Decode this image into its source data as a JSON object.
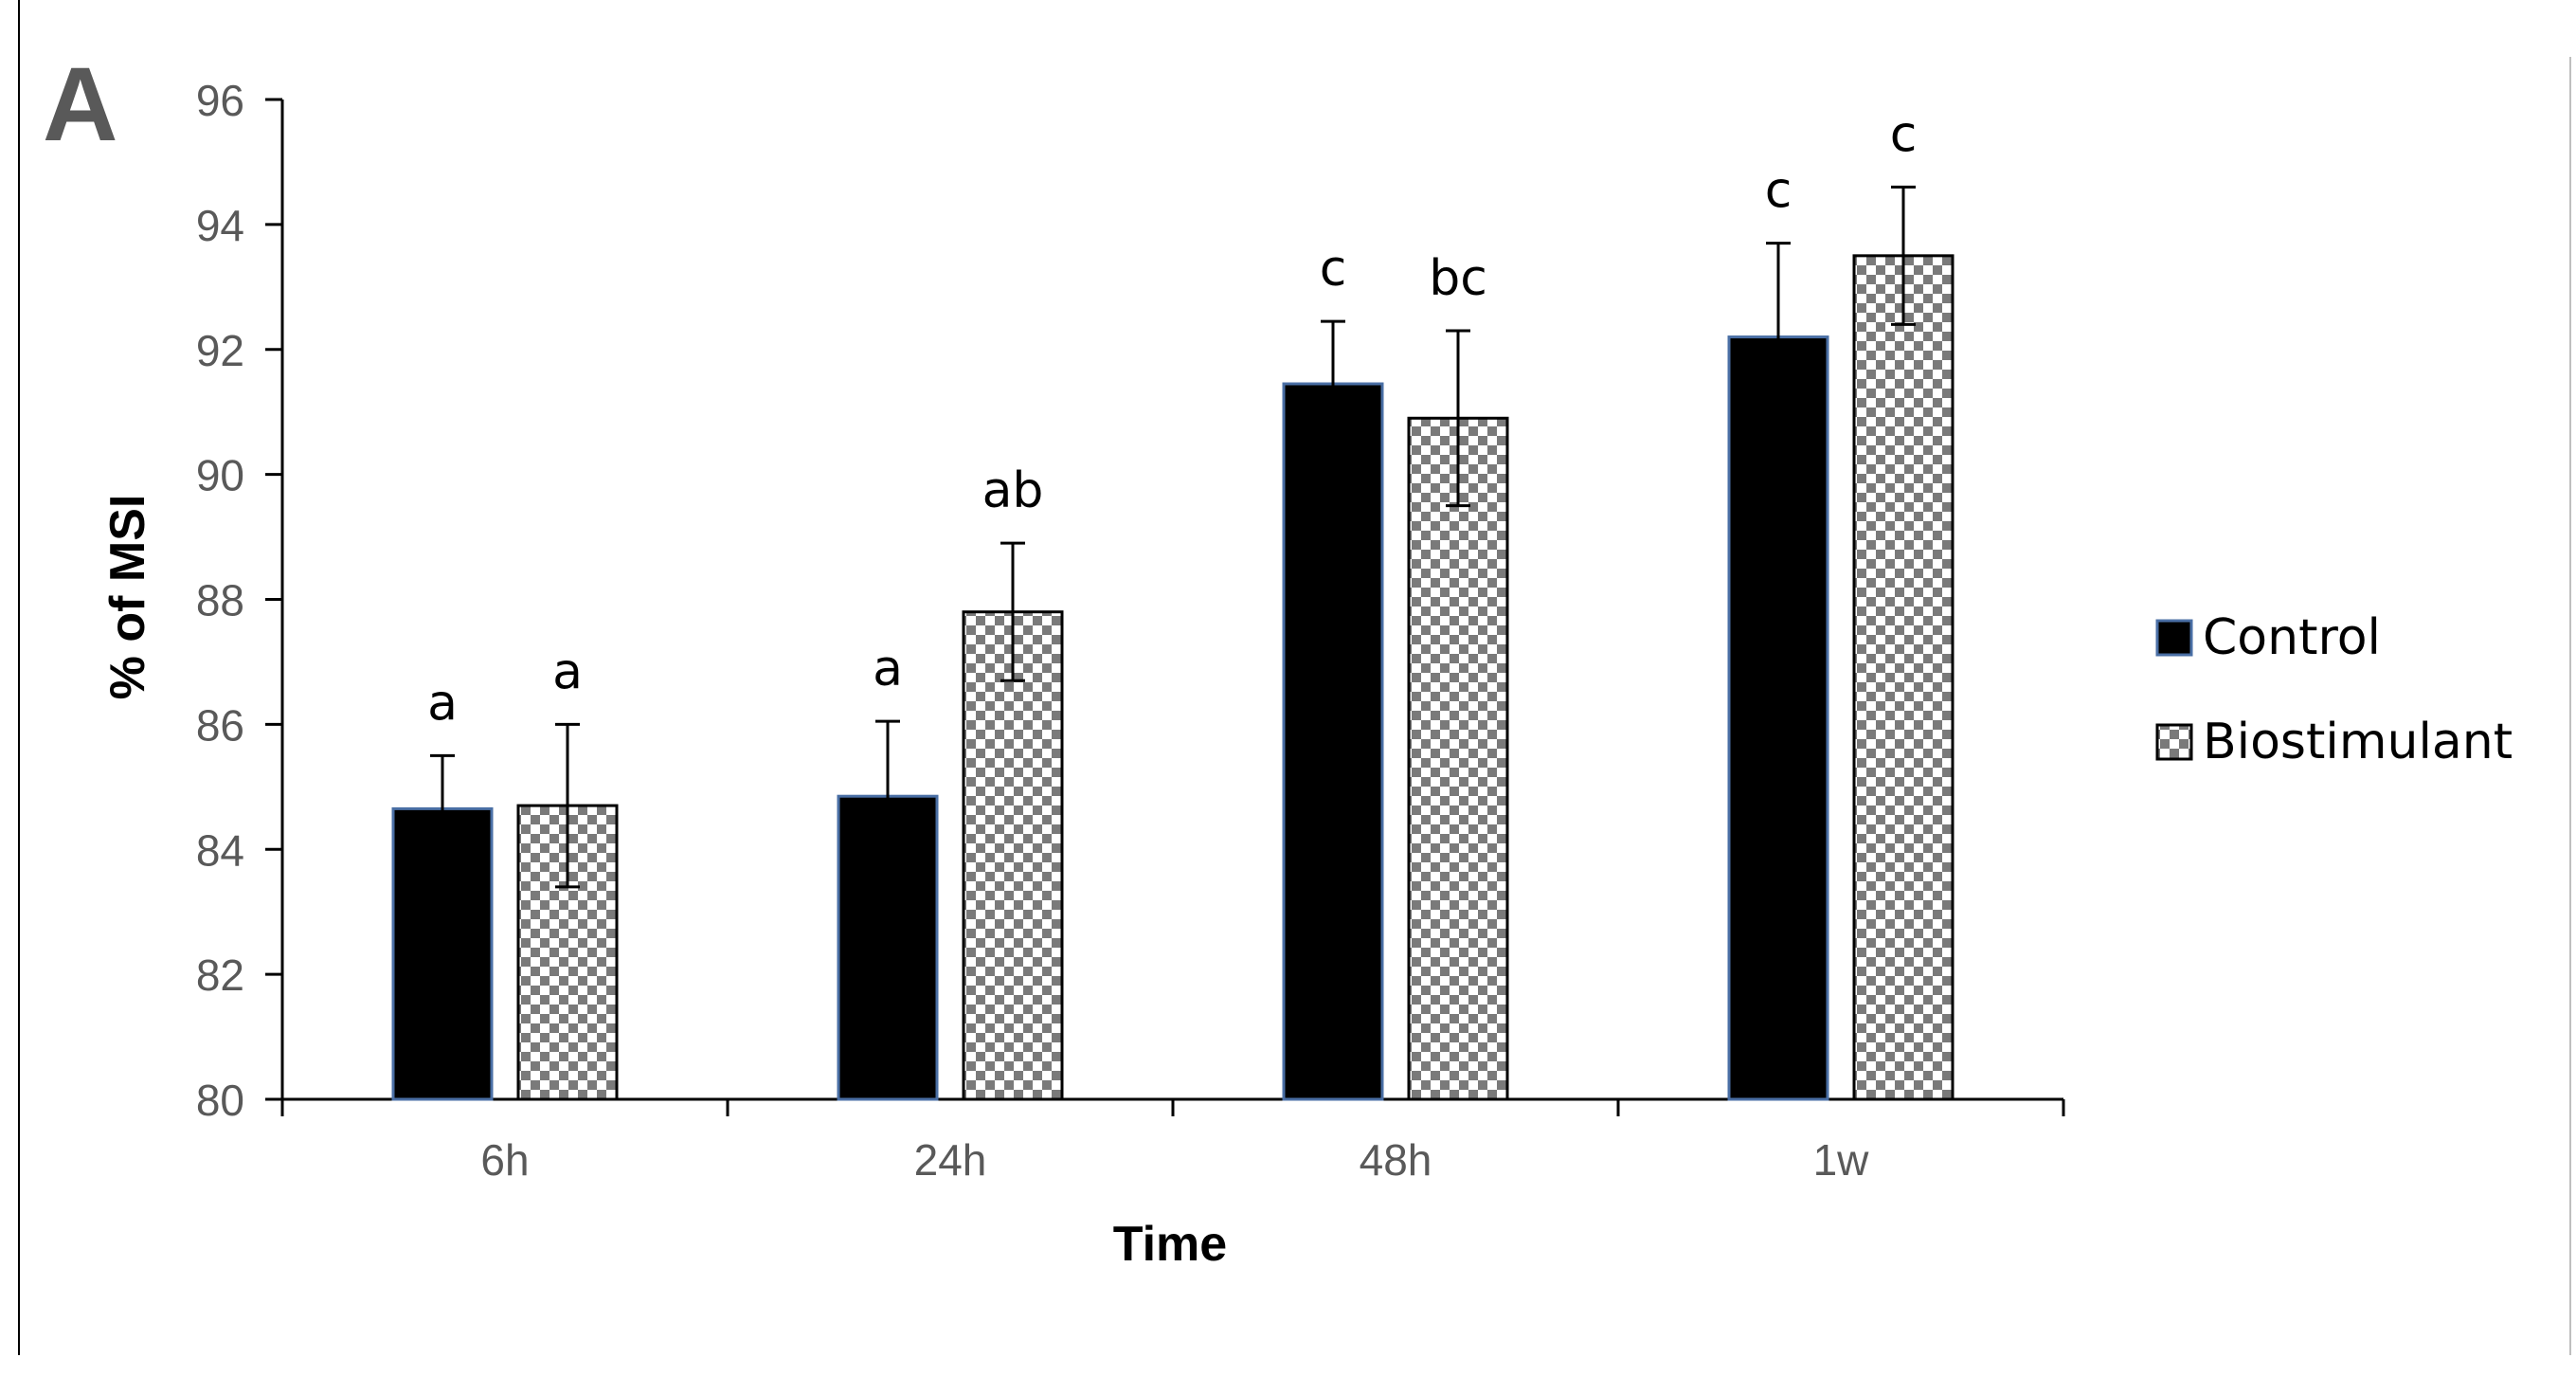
{
  "panel_label": "A",
  "chart_data": {
    "type": "bar",
    "title": "",
    "xlabel": "Time",
    "ylabel": "% of MSI",
    "categories": [
      "6h",
      "24h",
      "48h",
      "1w"
    ],
    "ylim": [
      80,
      96
    ],
    "yticks": [
      "80",
      "82",
      "84",
      "86",
      "88",
      "90",
      "92",
      "94",
      "96"
    ],
    "grid": false,
    "legend_position": "right",
    "series": [
      {
        "name": "Control",
        "pattern": "solid",
        "color": "#000000",
        "edge_color": "#4a6fa5",
        "values": [
          84.65,
          84.85,
          91.45,
          92.2
        ],
        "errors": [
          0.85,
          1.2,
          1.0,
          1.5
        ],
        "significance": [
          "a",
          "a",
          "c",
          "c"
        ]
      },
      {
        "name": "Biostimulant",
        "pattern": "checkerboard",
        "color": "#000000",
        "edge_color": "#000000",
        "values": [
          84.7,
          87.8,
          90.9,
          93.5
        ],
        "errors": [
          1.3,
          1.1,
          1.4,
          1.1
        ],
        "significance": [
          "a",
          "ab",
          "bc",
          "c"
        ]
      }
    ]
  }
}
